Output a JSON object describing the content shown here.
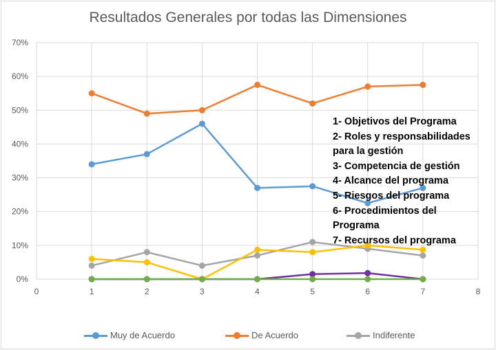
{
  "chart_data": {
    "type": "line",
    "title": "Resultados Generales por todas las Dimensiones",
    "xlabel": "",
    "ylabel": "",
    "xlim": [
      0,
      8
    ],
    "ylim": [
      0,
      0.7
    ],
    "x_ticks": [
      "0",
      "1",
      "2",
      "3",
      "4",
      "5",
      "6",
      "7",
      "8"
    ],
    "y_ticks": [
      "0%",
      "10%",
      "20%",
      "30%",
      "40%",
      "50%",
      "60%",
      "70%"
    ],
    "x": [
      1,
      2,
      3,
      4,
      5,
      6,
      7
    ],
    "grid": true,
    "series": [
      {
        "name": "Muy de Acuerdo",
        "color": "#5b9bd5",
        "in_legend": true,
        "values": [
          0.34,
          0.37,
          0.46,
          0.27,
          0.275,
          0.225,
          0.27
        ]
      },
      {
        "name": "De Acuerdo",
        "color": "#ed7d31",
        "in_legend": true,
        "values": [
          0.55,
          0.49,
          0.5,
          0.575,
          0.52,
          0.57,
          0.575
        ]
      },
      {
        "name": "Indiferente",
        "color": "#a5a5a5",
        "in_legend": true,
        "values": [
          0.04,
          0.08,
          0.04,
          0.07,
          0.11,
          0.09,
          0.07
        ]
      },
      {
        "name": "",
        "color": "#ffc000",
        "in_legend": false,
        "values": [
          0.06,
          0.05,
          0.0,
          0.087,
          0.08,
          0.1,
          0.087
        ]
      },
      {
        "name": "",
        "color": "#7030a0",
        "in_legend": false,
        "values": [
          0.0,
          0.0,
          0.0,
          0.0,
          0.015,
          0.018,
          0.0
        ]
      },
      {
        "name": "",
        "color": "#70ad47",
        "in_legend": false,
        "values": [
          0.0,
          0.0,
          0.0,
          0.0,
          0.0,
          0.0,
          0.0
        ]
      }
    ],
    "legend_position": "bottom",
    "annotation": {
      "lines": [
        "1-  Objetivos del Programa",
        "2-  Roles y responsabilidades",
        "para la gestión",
        "3-  Competencia de gestión",
        "4-  Alcance del programa",
        "5-  Riesgos del programa",
        "6-  Procedimientos del",
        "Programa",
        "7-  Recursos del programa"
      ]
    }
  }
}
